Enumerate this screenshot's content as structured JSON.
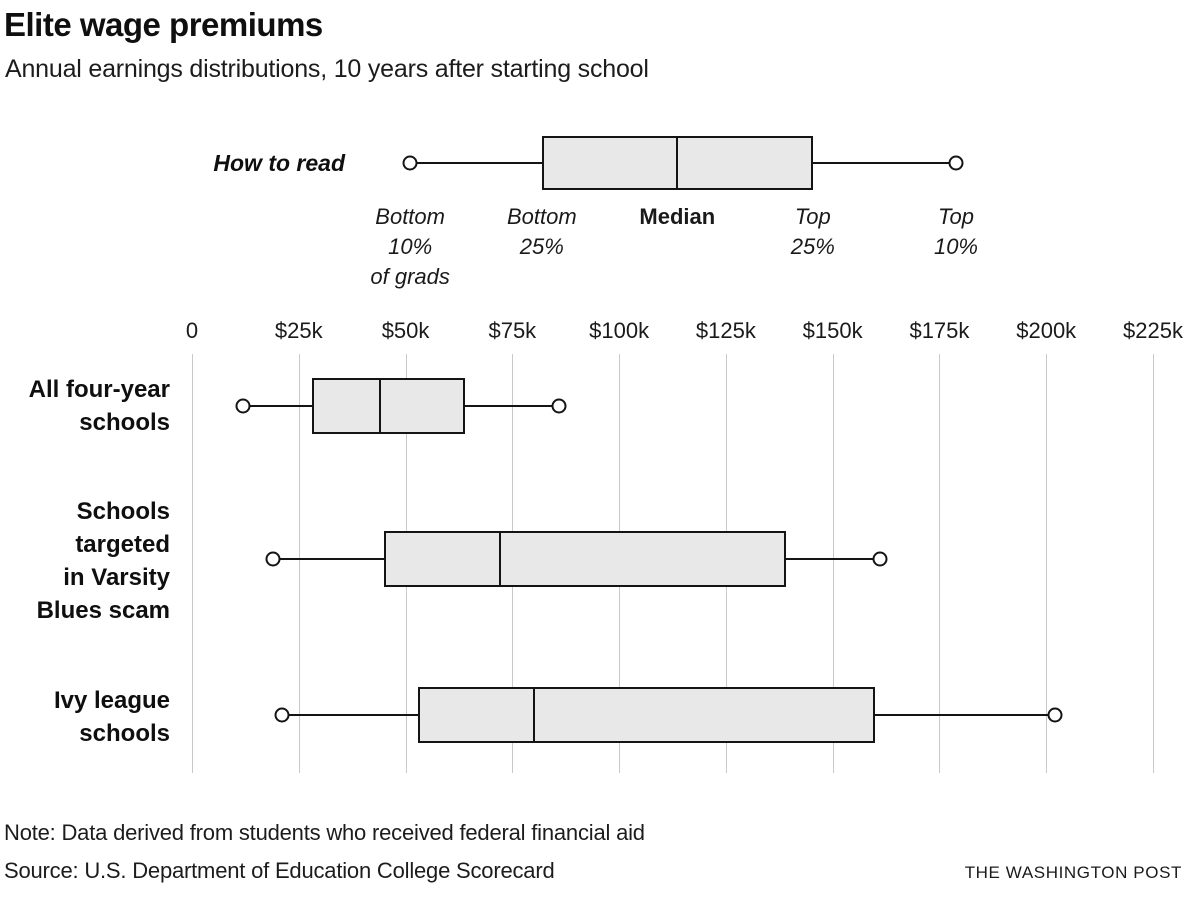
{
  "header": {
    "title": "Elite wage premiums",
    "subtitle": "Annual earnings distributions, 10 years after starting school"
  },
  "legend": {
    "label": "How to read",
    "annotations": [
      {
        "lines": [
          "Bottom",
          "10%",
          "of grads"
        ],
        "style": "italic"
      },
      {
        "lines": [
          "Bottom",
          "25%"
        ],
        "style": "italic"
      },
      {
        "lines": [
          "Median"
        ],
        "style": "bold"
      },
      {
        "lines": [
          "Top",
          "25%"
        ],
        "style": "italic"
      },
      {
        "lines": [
          "Top",
          "10%"
        ],
        "style": "italic"
      }
    ]
  },
  "chart_data": {
    "type": "boxplot",
    "orientation": "horizontal",
    "title": "Elite wage premiums",
    "subtitle": "Annual earnings distributions, 10 years after starting school",
    "x_axis": {
      "tick_labels": [
        "0",
        "$25k",
        "$50k",
        "$75k",
        "$100k",
        "$125k",
        "$150k",
        "$175k",
        "$200k",
        "$225k"
      ],
      "tick_values": [
        0,
        25000,
        50000,
        75000,
        100000,
        125000,
        150000,
        175000,
        200000,
        225000
      ],
      "min": 0,
      "max": 225000,
      "grid": true
    },
    "series": [
      {
        "label_lines": [
          "All four-year",
          "schools"
        ],
        "p10": 12000,
        "q1": 28000,
        "median": 44000,
        "q3": 64000,
        "p90": 86000
      },
      {
        "label_lines": [
          "Schools",
          "targeted",
          "in Varsity",
          "Blues scam"
        ],
        "p10": 19000,
        "q1": 45000,
        "median": 72000,
        "q3": 139000,
        "p90": 161000
      },
      {
        "label_lines": [
          "Ivy league",
          "schools"
        ],
        "p10": 21000,
        "q1": 53000,
        "median": 80000,
        "q3": 160000,
        "p90": 202000
      }
    ]
  },
  "footer": {
    "note": "Note: Data derived from students who received federal financial aid",
    "source": "Source: U.S. Department of Education College Scorecard",
    "credit": "THE WASHINGTON POST"
  },
  "colors": {
    "box_fill": "#e8e8e8",
    "stroke": "#141414",
    "gridline": "#c9c9c9",
    "text": "#111111"
  }
}
